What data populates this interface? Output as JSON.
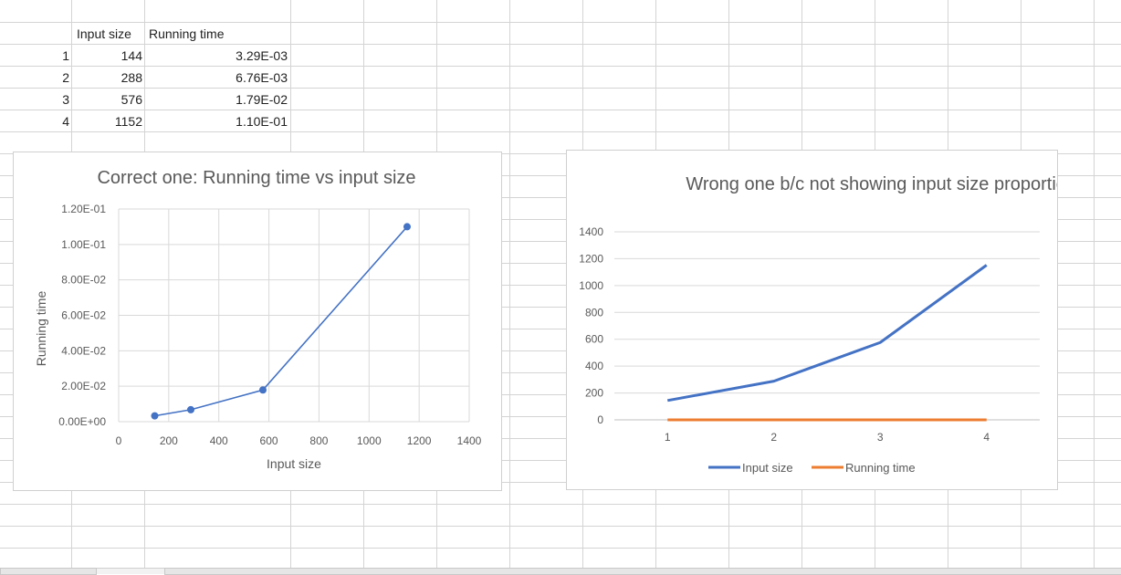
{
  "sheet": {
    "headers": [
      "Input size",
      "Running time"
    ],
    "rows": [
      {
        "num": "1",
        "input": "144",
        "time": "3.29E-03"
      },
      {
        "num": "2",
        "input": "288",
        "time": "6.76E-03"
      },
      {
        "num": "3",
        "input": "576",
        "time": "1.79E-02"
      },
      {
        "num": "4",
        "input": "1152",
        "time": "1.10E-01"
      }
    ]
  },
  "chart_data": [
    {
      "type": "scatter",
      "title": "Correct one: Running time vs input size",
      "xlabel": "Input size",
      "ylabel": "Running time",
      "xlim": [
        0,
        1400
      ],
      "ylim": [
        0,
        0.12
      ],
      "x_ticks": [
        "0",
        "200",
        "400",
        "600",
        "800",
        "1000",
        "1200",
        "1400"
      ],
      "y_ticks": [
        "0.00E+00",
        "2.00E-02",
        "4.00E-02",
        "6.00E-02",
        "8.00E-02",
        "1.00E-01",
        "1.20E-01"
      ],
      "grid": true,
      "series": [
        {
          "x": [
            144,
            288,
            576,
            1152
          ],
          "y": [
            0.00329,
            0.00676,
            0.0179,
            0.11
          ]
        }
      ],
      "colors": {
        "series": "#4472c4"
      }
    },
    {
      "type": "line",
      "title": "Wrong one b/c not showing input size proportional",
      "categories": [
        "1",
        "2",
        "3",
        "4"
      ],
      "ylim": [
        0,
        1400
      ],
      "y_ticks": [
        "0",
        "200",
        "400",
        "600",
        "800",
        "1000",
        "1200",
        "1400"
      ],
      "grid": true,
      "legend": "bottom",
      "series": [
        {
          "name": "Input size",
          "values": [
            144,
            288,
            576,
            1152
          ],
          "color": "#4472c4"
        },
        {
          "name": "Running time",
          "values": [
            0.00329,
            0.00676,
            0.0179,
            0.11
          ],
          "color": "#ed7d31"
        }
      ]
    }
  ]
}
